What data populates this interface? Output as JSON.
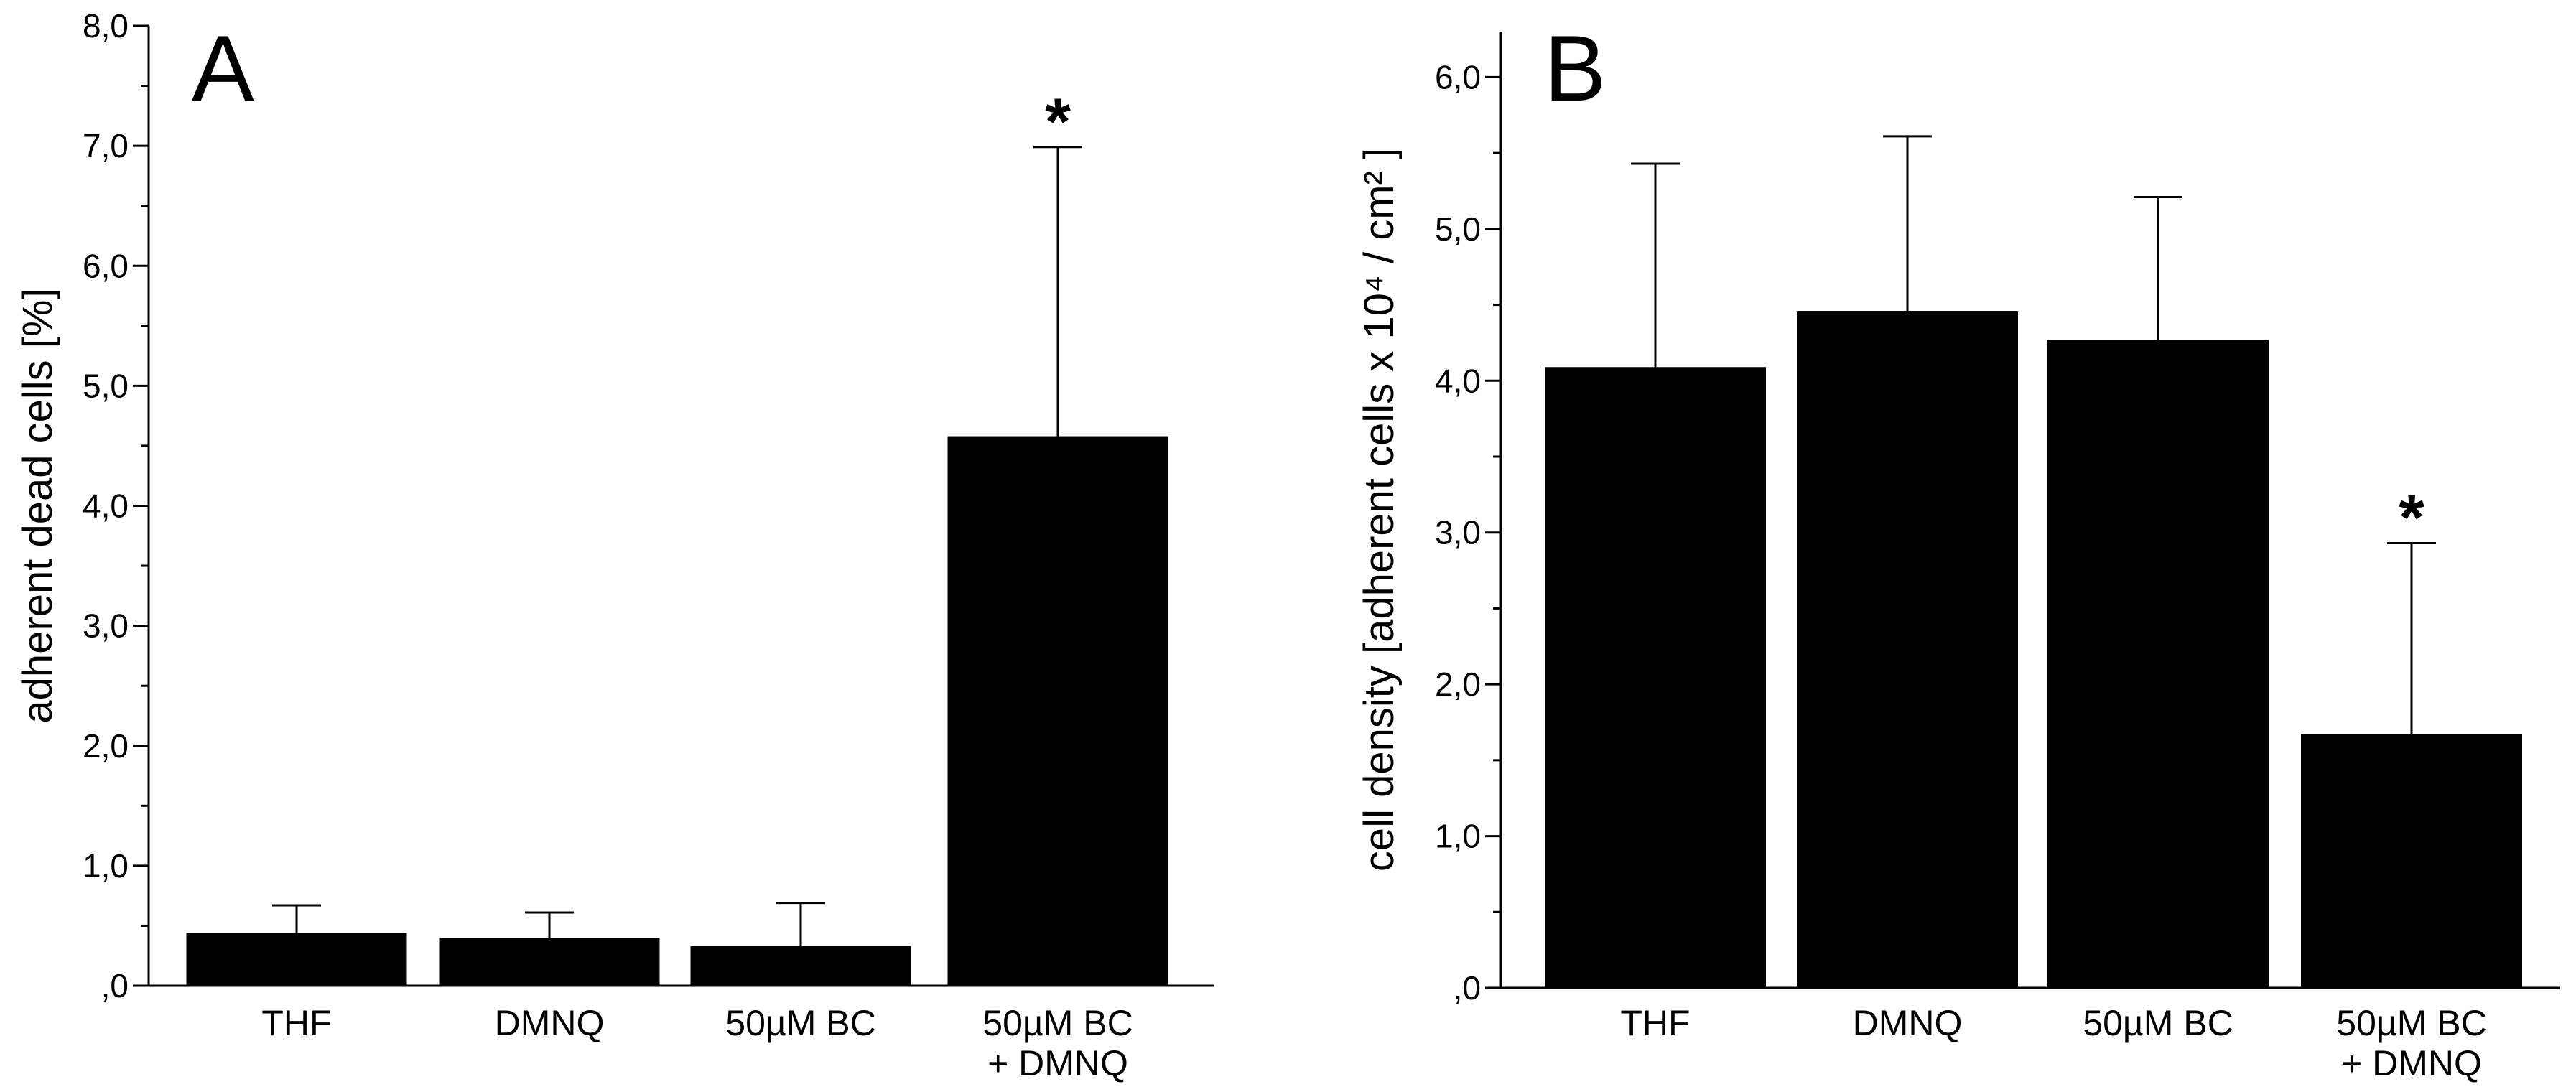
{
  "chart_data": [
    {
      "panel": "A",
      "type": "bar",
      "ylabel": "adherent dead cells [%]",
      "xlabel": "",
      "ylim": [
        0,
        8
      ],
      "yticks": [
        ",0",
        "1,0",
        "2,0",
        "3,0",
        "4,0",
        "5,0",
        "6,0",
        "7,0",
        "8,0"
      ],
      "categories": [
        [
          "THF"
        ],
        [
          "DMNQ"
        ],
        [
          "50µM BC"
        ],
        [
          "50µM BC",
          "+ DMNQ"
        ]
      ],
      "values": [
        0.44,
        0.4,
        0.33,
        4.58
      ],
      "error_upper": [
        0.67,
        0.61,
        0.69,
        6.99
      ],
      "significance": [
        "",
        "",
        "",
        "*"
      ],
      "color": "#000000"
    },
    {
      "panel": "B",
      "type": "bar",
      "ylabel": "cell density  [adherent cells x 10⁴ / cm² ]",
      "xlabel": "",
      "ylim": [
        0,
        6.3
      ],
      "yticks": [
        ",0",
        "1,0",
        "2,0",
        "3,0",
        "4,0",
        "5,0",
        "6,0"
      ],
      "categories": [
        [
          "THF"
        ],
        [
          "DMNQ"
        ],
        [
          "50µM BC"
        ],
        [
          "50µM BC",
          "+ DMNQ"
        ]
      ],
      "values": [
        4.09,
        4.46,
        4.27,
        1.67
      ],
      "error_upper": [
        5.43,
        5.61,
        5.21,
        2.93
      ],
      "significance": [
        "",
        "",
        "",
        "*"
      ],
      "color": "#000000"
    }
  ]
}
